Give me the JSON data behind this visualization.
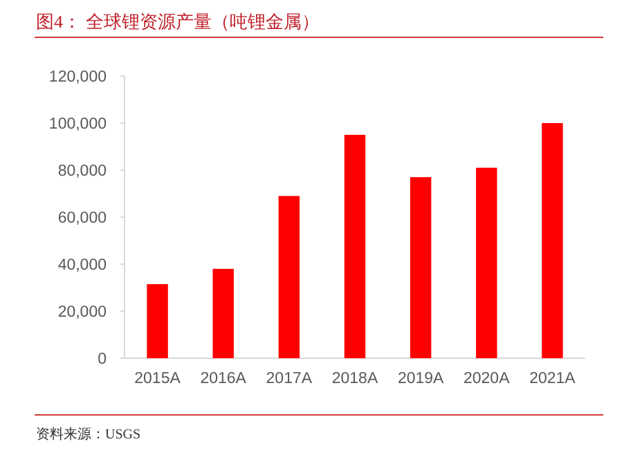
{
  "chart_data": {
    "type": "bar",
    "title": "图4：  全球锂资源产量（吨锂金属）",
    "categories": [
      "2015A",
      "2016A",
      "2017A",
      "2018A",
      "2019A",
      "2020A",
      "2021A"
    ],
    "values": [
      31500,
      38000,
      69000,
      95000,
      77000,
      81000,
      100000
    ],
    "color": "#ff0000",
    "ylim": [
      0,
      120000
    ],
    "yticks": [
      {
        "value": 0,
        "label": "0"
      },
      {
        "value": 20000,
        "label": "20,000"
      },
      {
        "value": 40000,
        "label": "40,000"
      },
      {
        "value": 60000,
        "label": "60,000"
      },
      {
        "value": 80000,
        "label": "80,000"
      },
      {
        "value": 100000,
        "label": "100,000"
      },
      {
        "value": 120000,
        "label": "120,000"
      }
    ],
    "grid": false,
    "annotations": [
      "资料来源：USGS"
    ]
  }
}
